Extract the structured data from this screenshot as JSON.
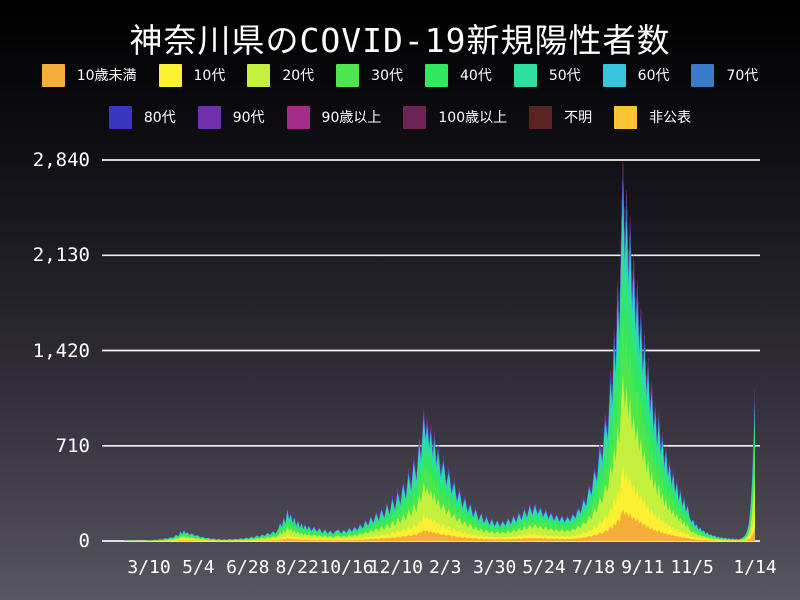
{
  "chart_data": {
    "type": "bar",
    "stacked": true,
    "note": "daily stacked bars by age group, rendered as stacked area",
    "title": "神奈川県のCOVID-19新規陽性者数",
    "xlabel": "",
    "ylabel": "",
    "ylim": [
      0,
      2840
    ],
    "grid": true,
    "legend_position": "top",
    "y_ticks": [
      {
        "value": 0,
        "label": "0"
      },
      {
        "value": 710,
        "label": "710"
      },
      {
        "value": 1420,
        "label": "1,420"
      },
      {
        "value": 2130,
        "label": "2,130"
      },
      {
        "value": 2840,
        "label": "2,840"
      }
    ],
    "x_ticks": [
      {
        "label": "3/10",
        "day": 0
      },
      {
        "label": "5/4",
        "day": 55
      },
      {
        "label": "6/28",
        "day": 110
      },
      {
        "label": "8/22",
        "day": 165
      },
      {
        "label": "10/16",
        "day": 220
      },
      {
        "label": "12/10",
        "day": 275
      },
      {
        "label": "2/3",
        "day": 330
      },
      {
        "label": "3/30",
        "day": 385
      },
      {
        "label": "5/24",
        "day": 440
      },
      {
        "label": "7/18",
        "day": 495
      },
      {
        "label": "9/11",
        "day": 550
      },
      {
        "label": "11/5",
        "day": 605
      },
      {
        "label": "1/14",
        "day": 675
      }
    ],
    "x_unit": "days relative to first tick 3/10",
    "series": [
      {
        "key": "under10",
        "name": "10歳未満",
        "color": "#F6AE3B",
        "fraction": 0.085
      },
      {
        "key": "10s",
        "name": "10代",
        "color": "#FBF032",
        "fraction": 0.115
      },
      {
        "key": "20s",
        "name": "20代",
        "color": "#C3F03C",
        "fraction": 0.238
      },
      {
        "key": "30s",
        "name": "30代",
        "color": "#4DE74D",
        "fraction": 0.168
      },
      {
        "key": "40s",
        "name": "40代",
        "color": "#30E95F",
        "fraction": 0.145
      },
      {
        "key": "50s",
        "name": "50代",
        "color": "#2EDF9F",
        "fraction": 0.115
      },
      {
        "key": "60s",
        "name": "60代",
        "color": "#35C6DC",
        "fraction": 0.052
      },
      {
        "key": "70s",
        "name": "70代",
        "color": "#3B7CCA",
        "fraction": 0.038
      },
      {
        "key": "80s",
        "name": "80代",
        "color": "#3A35C2",
        "fraction": 0.025
      },
      {
        "key": "90s",
        "name": "90代",
        "color": "#7230A8",
        "fraction": 0.012
      },
      {
        "key": "over90",
        "name": "90歳以上",
        "color": "#A22C88",
        "fraction": 0.004
      },
      {
        "key": "over100",
        "name": "100歳以上",
        "color": "#6F2355",
        "fraction": 0.001
      },
      {
        "key": "unknown",
        "name": "不明",
        "color": "#5C2323",
        "fraction": 0.001
      },
      {
        "key": "undisclosed",
        "name": "非公表",
        "color": "#FBC432",
        "fraction": 0.001
      }
    ],
    "legend_row_split": 8,
    "totals_daily_estimate": [
      [
        -50,
        0
      ],
      [
        -30,
        0
      ],
      [
        -24,
        1
      ],
      [
        -20,
        2
      ],
      [
        -17,
        1
      ],
      [
        -14,
        3
      ],
      [
        -11,
        2
      ],
      [
        -8,
        4
      ],
      [
        -5,
        2
      ],
      [
        -2,
        5
      ],
      [
        0,
        6
      ],
      [
        3,
        4
      ],
      [
        6,
        10
      ],
      [
        9,
        7
      ],
      [
        12,
        14
      ],
      [
        15,
        10
      ],
      [
        18,
        22
      ],
      [
        21,
        16
      ],
      [
        24,
        30
      ],
      [
        27,
        24
      ],
      [
        30,
        48
      ],
      [
        33,
        38
      ],
      [
        35,
        75
      ],
      [
        37,
        55
      ],
      [
        39,
        85
      ],
      [
        41,
        60
      ],
      [
        43,
        70
      ],
      [
        45,
        48
      ],
      [
        48,
        60
      ],
      [
        51,
        38
      ],
      [
        54,
        48
      ],
      [
        57,
        28
      ],
      [
        60,
        34
      ],
      [
        63,
        20
      ],
      [
        66,
        26
      ],
      [
        69,
        14
      ],
      [
        72,
        20
      ],
      [
        75,
        10
      ],
      [
        78,
        16
      ],
      [
        81,
        8
      ],
      [
        84,
        14
      ],
      [
        87,
        9
      ],
      [
        90,
        16
      ],
      [
        93,
        10
      ],
      [
        96,
        18
      ],
      [
        99,
        12
      ],
      [
        102,
        22
      ],
      [
        105,
        14
      ],
      [
        108,
        26
      ],
      [
        111,
        18
      ],
      [
        114,
        34
      ],
      [
        117,
        24
      ],
      [
        120,
        44
      ],
      [
        123,
        32
      ],
      [
        126,
        52
      ],
      [
        129,
        40
      ],
      [
        132,
        64
      ],
      [
        135,
        48
      ],
      [
        138,
        78
      ],
      [
        141,
        58
      ],
      [
        144,
        95
      ],
      [
        146,
        140
      ],
      [
        148,
        110
      ],
      [
        150,
        185
      ],
      [
        152,
        135
      ],
      [
        154,
        250
      ],
      [
        156,
        170
      ],
      [
        158,
        215
      ],
      [
        160,
        140
      ],
      [
        162,
        185
      ],
      [
        164,
        120
      ],
      [
        166,
        160
      ],
      [
        168,
        105
      ],
      [
        170,
        140
      ],
      [
        172,
        95
      ],
      [
        174,
        130
      ],
      [
        176,
        88
      ],
      [
        178,
        120
      ],
      [
        181,
        80
      ],
      [
        184,
        112
      ],
      [
        187,
        75
      ],
      [
        190,
        102
      ],
      [
        193,
        62
      ],
      [
        196,
        92
      ],
      [
        199,
        58
      ],
      [
        202,
        85
      ],
      [
        205,
        55
      ],
      [
        208,
        80
      ],
      [
        211,
        92
      ],
      [
        214,
        60
      ],
      [
        217,
        88
      ],
      [
        220,
        64
      ],
      [
        223,
        102
      ],
      [
        226,
        74
      ],
      [
        229,
        112
      ],
      [
        232,
        84
      ],
      [
        235,
        132
      ],
      [
        238,
        98
      ],
      [
        241,
        160
      ],
      [
        244,
        122
      ],
      [
        247,
        192
      ],
      [
        250,
        142
      ],
      [
        253,
        222
      ],
      [
        256,
        162
      ],
      [
        259,
        252
      ],
      [
        262,
        182
      ],
      [
        265,
        292
      ],
      [
        268,
        212
      ],
      [
        271,
        338
      ],
      [
        274,
        248
      ],
      [
        277,
        392
      ],
      [
        280,
        288
      ],
      [
        283,
        455
      ],
      [
        286,
        338
      ],
      [
        289,
        540
      ],
      [
        292,
        405
      ],
      [
        295,
        635
      ],
      [
        298,
        485
      ],
      [
        301,
        785
      ],
      [
        303,
        645
      ],
      [
        306,
        995
      ],
      [
        308,
        815
      ],
      [
        310,
        925
      ],
      [
        312,
        755
      ],
      [
        314,
        875
      ],
      [
        316,
        685
      ],
      [
        318,
        815
      ],
      [
        320,
        605
      ],
      [
        322,
        725
      ],
      [
        325,
        515
      ],
      [
        328,
        635
      ],
      [
        331,
        445
      ],
      [
        334,
        555
      ],
      [
        337,
        378
      ],
      [
        340,
        465
      ],
      [
        343,
        318
      ],
      [
        346,
        398
      ],
      [
        349,
        268
      ],
      [
        352,
        338
      ],
      [
        355,
        228
      ],
      [
        358,
        292
      ],
      [
        361,
        192
      ],
      [
        364,
        252
      ],
      [
        367,
        162
      ],
      [
        370,
        218
      ],
      [
        373,
        142
      ],
      [
        376,
        192
      ],
      [
        379,
        128
      ],
      [
        382,
        172
      ],
      [
        385,
        118
      ],
      [
        388,
        162
      ],
      [
        391,
        112
      ],
      [
        394,
        158
      ],
      [
        397,
        122
      ],
      [
        400,
        178
      ],
      [
        403,
        132
      ],
      [
        406,
        198
      ],
      [
        409,
        148
      ],
      [
        412,
        222
      ],
      [
        415,
        168
      ],
      [
        418,
        252
      ],
      [
        421,
        188
      ],
      [
        424,
        282
      ],
      [
        427,
        208
      ],
      [
        430,
        288
      ],
      [
        433,
        212
      ],
      [
        436,
        262
      ],
      [
        439,
        192
      ],
      [
        442,
        242
      ],
      [
        445,
        178
      ],
      [
        448,
        222
      ],
      [
        451,
        162
      ],
      [
        454,
        208
      ],
      [
        457,
        152
      ],
      [
        460,
        198
      ],
      [
        463,
        148
      ],
      [
        466,
        192
      ],
      [
        469,
        158
      ],
      [
        472,
        212
      ],
      [
        475,
        182
      ],
      [
        478,
        258
      ],
      [
        481,
        222
      ],
      [
        484,
        328
      ],
      [
        487,
        278
      ],
      [
        490,
        428
      ],
      [
        493,
        368
      ],
      [
        496,
        558
      ],
      [
        499,
        478
      ],
      [
        502,
        738
      ],
      [
        505,
        638
      ],
      [
        508,
        955
      ],
      [
        511,
        825
      ],
      [
        514,
        1275
      ],
      [
        516,
        1095
      ],
      [
        518,
        1595
      ],
      [
        520,
        1345
      ],
      [
        522,
        1945
      ],
      [
        524,
        1645
      ],
      [
        526,
        2345
      ],
      [
        528,
        2840
      ],
      [
        530,
        2245
      ],
      [
        532,
        2625
      ],
      [
        534,
        2075
      ],
      [
        536,
        2425
      ],
      [
        538,
        1875
      ],
      [
        540,
        2145
      ],
      [
        542,
        1695
      ],
      [
        544,
        1945
      ],
      [
        546,
        1515
      ],
      [
        548,
        1745
      ],
      [
        550,
        1345
      ],
      [
        552,
        1555
      ],
      [
        554,
        1175
      ],
      [
        556,
        1365
      ],
      [
        558,
        1015
      ],
      [
        560,
        1195
      ],
      [
        562,
        875
      ],
      [
        564,
        1035
      ],
      [
        566,
        755
      ],
      [
        568,
        975
      ],
      [
        570,
        695
      ],
      [
        572,
        815
      ],
      [
        574,
        595
      ],
      [
        576,
        715
      ],
      [
        578,
        515
      ],
      [
        580,
        615
      ],
      [
        582,
        445
      ],
      [
        584,
        535
      ],
      [
        586,
        385
      ],
      [
        588,
        465
      ],
      [
        590,
        325
      ],
      [
        592,
        395
      ],
      [
        594,
        275
      ],
      [
        596,
        335
      ],
      [
        598,
        232
      ],
      [
        600,
        282
      ],
      [
        602,
        192
      ],
      [
        604,
        148
      ],
      [
        606,
        168
      ],
      [
        608,
        118
      ],
      [
        610,
        132
      ],
      [
        612,
        92
      ],
      [
        614,
        108
      ],
      [
        616,
        74
      ],
      [
        618,
        86
      ],
      [
        620,
        58
      ],
      [
        622,
        68
      ],
      [
        624,
        46
      ],
      [
        626,
        54
      ],
      [
        628,
        37
      ],
      [
        630,
        44
      ],
      [
        632,
        29
      ],
      [
        634,
        35
      ],
      [
        636,
        24
      ],
      [
        638,
        29
      ],
      [
        640,
        20
      ],
      [
        642,
        25
      ],
      [
        644,
        17
      ],
      [
        646,
        21
      ],
      [
        648,
        15
      ],
      [
        650,
        19
      ],
      [
        652,
        13
      ],
      [
        654,
        17
      ],
      [
        656,
        12
      ],
      [
        658,
        16
      ],
      [
        660,
        22
      ],
      [
        662,
        30
      ],
      [
        664,
        45
      ],
      [
        666,
        75
      ],
      [
        668,
        130
      ],
      [
        670,
        260
      ],
      [
        672,
        500
      ],
      [
        674,
        880
      ],
      [
        675,
        1150
      ]
    ]
  },
  "colors": {
    "background_top": "#000000",
    "background_bottom": "#585662",
    "grid": "#F0F0F3",
    "text": "#FFFFFF"
  }
}
